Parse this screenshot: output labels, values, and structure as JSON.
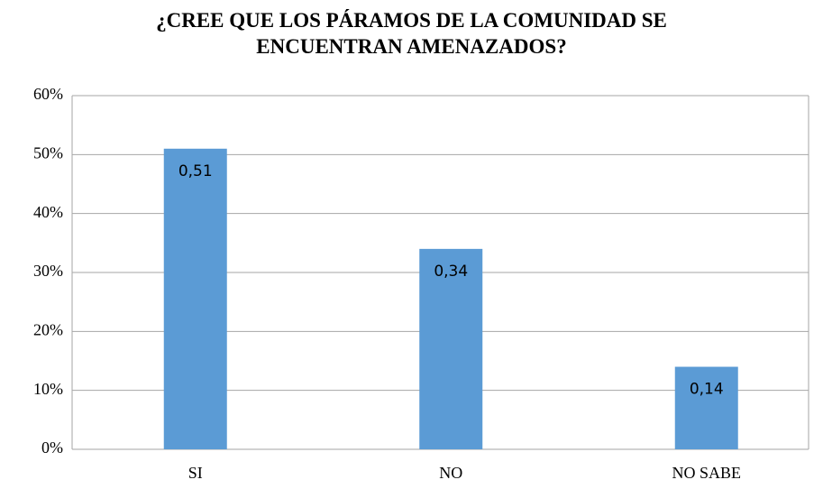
{
  "chart_data": {
    "type": "bar",
    "title": "¿CREE QUE LOS PÁRAMOS DE LA COMUNIDAD SE ENCUENTRAN AMENAZADOS?",
    "categories": [
      "SI",
      "NO",
      "NO SABE"
    ],
    "values": [
      51,
      34,
      14
    ],
    "value_labels": [
      "0,51",
      "0,34",
      "0,14"
    ],
    "color": "#5b9bd5",
    "ylim": [
      0,
      60
    ],
    "yticks": [
      {
        "value": 0,
        "label": "0%"
      },
      {
        "value": 10,
        "label": "10%"
      },
      {
        "value": 20,
        "label": "20%"
      },
      {
        "value": 30,
        "label": "30%"
      },
      {
        "value": 40,
        "label": "40%"
      },
      {
        "value": 50,
        "label": "50%"
      },
      {
        "value": 60,
        "label": "60%"
      }
    ],
    "grid": true
  }
}
